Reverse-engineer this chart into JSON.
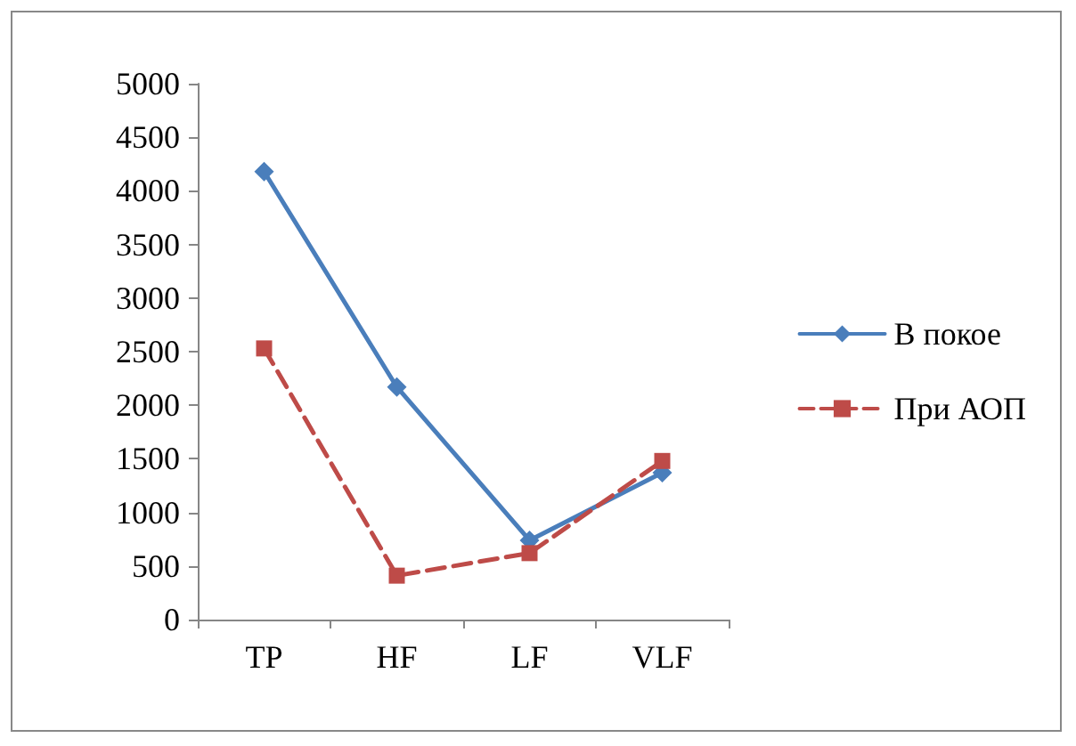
{
  "chart_data": {
    "type": "line",
    "categories": [
      "TP",
      "HF",
      "LF",
      "VLF"
    ],
    "series": [
      {
        "name": "В покое",
        "color": "#4a7ebb",
        "marker": "diamond",
        "line_style": "solid",
        "values": [
          4180,
          2170,
          740,
          1370
        ]
      },
      {
        "name": "При АОП",
        "color": "#be4b48",
        "marker": "square",
        "line_style": "dashed",
        "values": [
          2530,
          410,
          620,
          1480
        ]
      }
    ],
    "ylim": [
      0,
      5000
    ],
    "yticks": [
      0,
      500,
      1000,
      1500,
      2000,
      2500,
      3000,
      3500,
      4000,
      4500,
      5000
    ],
    "grid": false,
    "legend": "right"
  }
}
